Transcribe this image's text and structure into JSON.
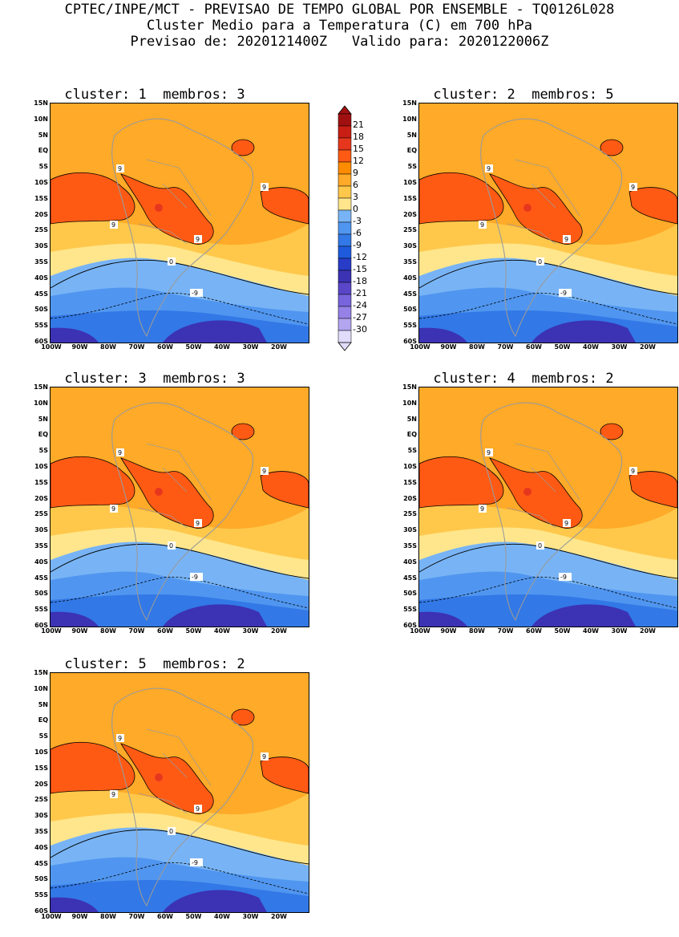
{
  "header": {
    "line1": "CPTEC/INPE/MCT - PREVISAO DE TEMPO GLOBAL POR ENSEMBLE - TQ0126L028",
    "line2": "Cluster Medio para a Temperatura (C) em 700 hPa",
    "line3": "Previsao de: 2020121400Z   Valido para: 2020122006Z"
  },
  "panels": [
    {
      "title": "cluster: 1  membros: 3"
    },
    {
      "title": "cluster: 2  membros: 5"
    },
    {
      "title": "cluster: 3  membros: 3"
    },
    {
      "title": "cluster: 4  membros: 2"
    },
    {
      "title": "cluster: 5  membros: 2"
    }
  ],
  "lat_labels": [
    "15N",
    "10N",
    "5N",
    "EQ",
    "5S",
    "10S",
    "15S",
    "20S",
    "25S",
    "30S",
    "35S",
    "40S",
    "45S",
    "50S",
    "55S",
    "60S"
  ],
  "lon_labels": [
    "100W",
    "90W",
    "80W",
    "70W",
    "60W",
    "50W",
    "40W",
    "30W",
    "20W"
  ],
  "contour_labels": {
    "warm": "9",
    "zero": "0",
    "cold": "-9"
  },
  "colorbar": {
    "labels": [
      "21",
      "18",
      "15",
      "12",
      "9",
      "6",
      "3",
      "0",
      "-3",
      "-6",
      "-9",
      "-12",
      "-15",
      "-18",
      "-21",
      "-24",
      "-27",
      "-30"
    ],
    "colors": [
      "#a01010",
      "#c81e14",
      "#e6371e",
      "#ff5a14",
      "#ff8c00",
      "#ffaa28",
      "#ffc84b",
      "#ffe68c",
      "#78b4f5",
      "#5096f0",
      "#3278e6",
      "#1e5adc",
      "#283cc8",
      "#3c32b4",
      "#5a46c8",
      "#7864dc",
      "#9682e6",
      "#b4a5f0",
      "#e1dcfa"
    ]
  },
  "palette": {
    "warm_dark": "#ff5a14",
    "warm": "#ffaa28",
    "warm_light": "#ffc84b",
    "pale": "#ffe68c",
    "cold_light": "#78b4f5",
    "cold": "#5096f0",
    "cold_dark": "#3278e6",
    "deep": "#3c32b4",
    "map_outline": "#9a9a9a"
  }
}
